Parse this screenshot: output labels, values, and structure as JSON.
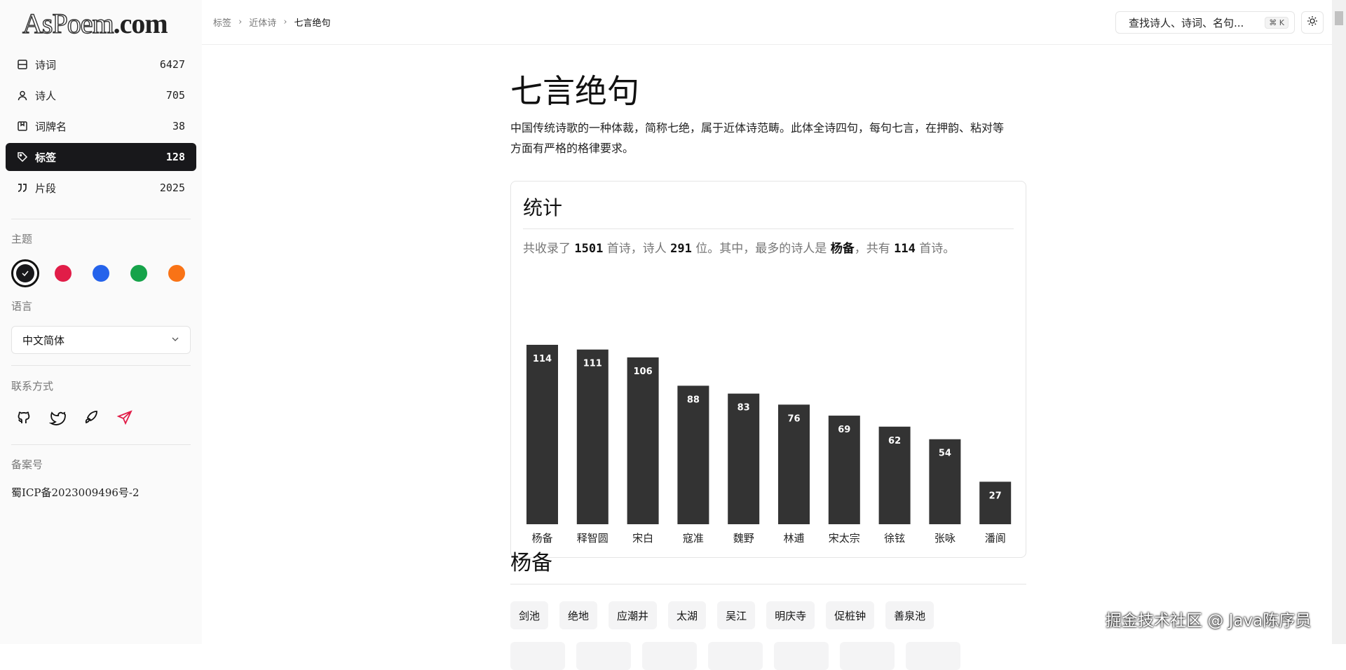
{
  "logo": {
    "part1": "AsPoem",
    "part2": ".com"
  },
  "sidebar": {
    "items": [
      {
        "label": "诗词",
        "count": "6427",
        "icon": "book-icon"
      },
      {
        "label": "诗人",
        "count": "705",
        "icon": "user-icon"
      },
      {
        "label": "词牌名",
        "count": "38",
        "icon": "bookmark-icon"
      },
      {
        "label": "标签",
        "count": "128",
        "icon": "tag-icon",
        "active": true
      },
      {
        "label": "片段",
        "count": "2025",
        "icon": "quote-icon"
      }
    ],
    "theme_label": "主题",
    "themes": [
      "#18181b",
      "#e11d48",
      "#2563eb",
      "#16a34a",
      "#f97316"
    ],
    "language_label": "语言",
    "language_value": "中文简体",
    "contact_label": "联系方式",
    "contacts": [
      "github-icon",
      "twitter-icon",
      "rocket-icon",
      "send-icon"
    ],
    "icp_label": "备案号",
    "icp_value": "蜀ICP备2023009496号-2"
  },
  "header": {
    "breadcrumb": [
      "标签",
      "近体诗",
      "七言绝句"
    ],
    "search_placeholder": "查找诗人、诗词、名句...",
    "shortcut": "⌘ K"
  },
  "main": {
    "title": "七言绝句",
    "description": "中国传统诗歌的一种体裁，简称七绝，属于近体诗范畴。此体全诗四句，每句七言，在押韵、粘对等方面有严格的格律要求。",
    "stats": {
      "title": "统计",
      "s1": "共收录了 ",
      "poems": "1501",
      "s2": " 首诗，诗人 ",
      "poets": "291",
      "s3": " 位。其中，最多的诗人是 ",
      "top_poet": "杨备",
      "s4": "，共有 ",
      "top_count": "114",
      "s5": " 首诗。"
    },
    "section_title": "杨备",
    "tags": [
      "剑池",
      "绝地",
      "应潮井",
      "太湖",
      "吴江",
      "明庆寺",
      "促桩钟",
      "善泉池"
    ]
  },
  "chart_data": {
    "type": "bar",
    "categories": [
      "杨备",
      "释智圆",
      "宋白",
      "寇准",
      "魏野",
      "林逋",
      "宋太宗",
      "徐铉",
      "张咏",
      "潘阆"
    ],
    "values": [
      114,
      111,
      106,
      88,
      83,
      76,
      69,
      62,
      54,
      27
    ],
    "bar_color": "#333333",
    "grid": false
  },
  "watermark": "掘金技术社区 @ Java陈序员"
}
